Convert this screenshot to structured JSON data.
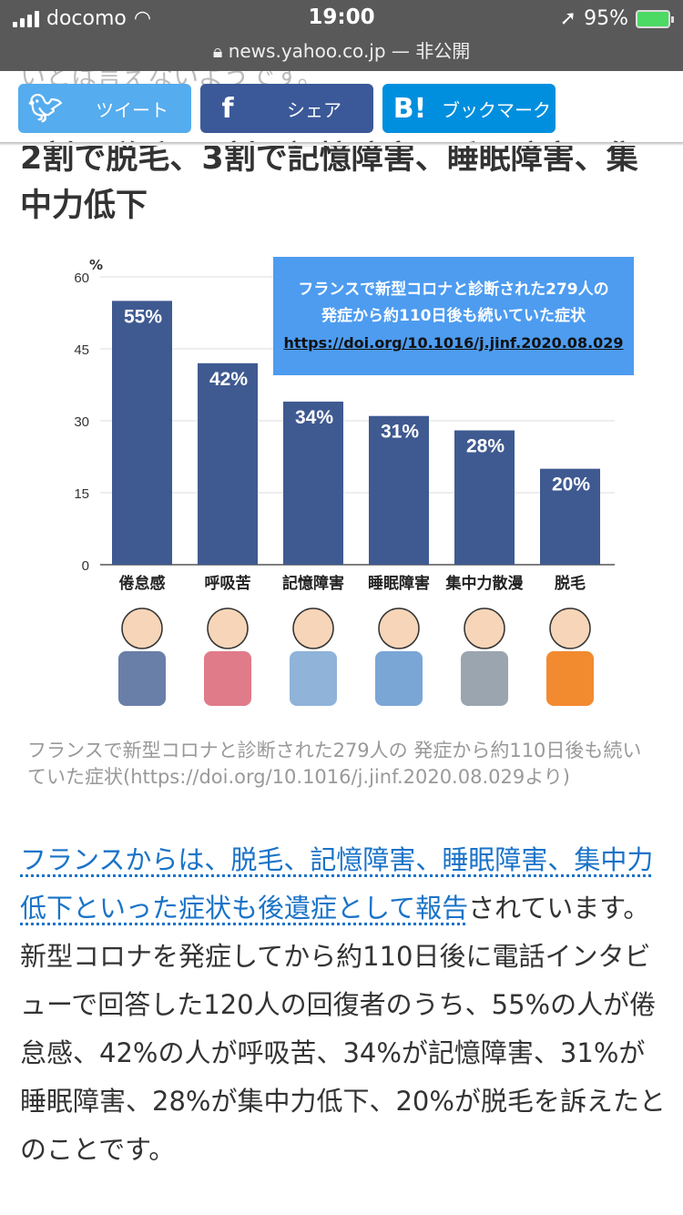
{
  "status": {
    "carrier": "docomo",
    "time": "19:00",
    "battery": "95%",
    "url": "news.yahoo.co.jp",
    "privacy": "— 非公開"
  },
  "ghost_text": "いとは言えないようです。",
  "share": {
    "tweet": "ツイート",
    "facebook": "シェア",
    "hatena": "ブックマーク",
    "colors": {
      "tweet": "#55acee",
      "facebook": "#3b5998",
      "hatena": "#008fde"
    }
  },
  "title": "2割で脱毛、3割で記憶障害、睡眠障害、集中力低下",
  "chart_data": {
    "type": "bar",
    "title_line1": "フランスで新型コロナと診断された279人の",
    "title_line2": "発症から約110日後も続いていた症状",
    "source": "https://doi.org/10.1016/j.jinf.2020.08.029",
    "ylabel": "%",
    "ylim": [
      0,
      60
    ],
    "yticks": [
      0,
      15,
      30,
      45,
      60
    ],
    "categories": [
      "倦怠感",
      "呼吸苦",
      "記憶障害",
      "睡眠障害",
      "集中力散漫",
      "脱毛"
    ],
    "values": [
      55,
      42,
      34,
      31,
      28,
      20
    ],
    "bar_color": "#3f5a91",
    "grid": true
  },
  "caption": "フランスで新型コロナと診断された279人の 発症から約110日後も続いていた症状(https://doi.org/10.1016/j.jinf.2020.08.029より)",
  "body": {
    "link": "フランスからは、脱毛、記憶障害、睡眠障害、集中力低下といった症状も後遺症として報告",
    "after_link": "されています。",
    "paragraph2": "新型コロナを発症してから約110日後に電話インタビューで回答した120人の回復者のうち、55%の人が倦怠感、42%の人が呼吸苦、34%が記憶障害、31%が睡眠障害、28%が集中力低下、20%が脱毛を訴えたとのことです。"
  }
}
